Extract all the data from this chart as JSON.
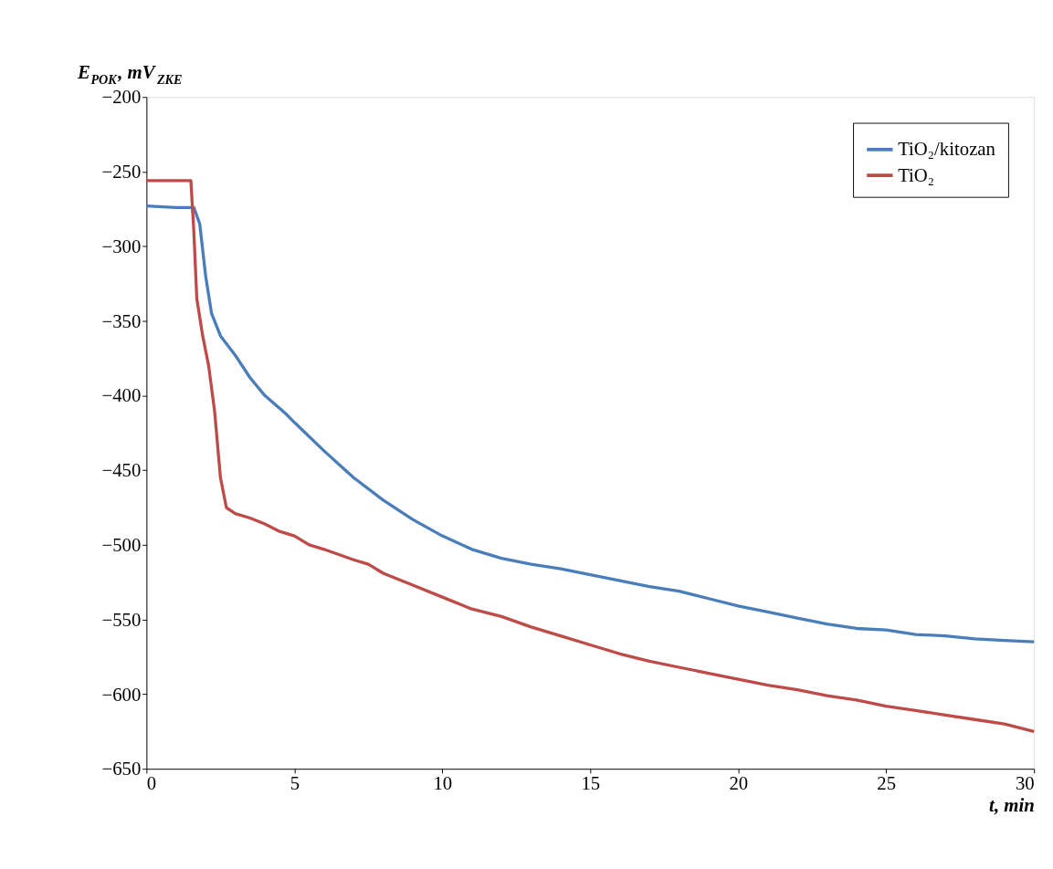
{
  "chart_data": {
    "type": "line",
    "ylabel": "E$_{POK}$, mV$_{ZKE}$",
    "xlabel": "t, min",
    "xlim": [
      0,
      30
    ],
    "xticks": [
      0,
      5,
      10,
      15,
      20,
      25,
      30
    ],
    "ylim": [
      -650,
      -200
    ],
    "yticks": [
      -650,
      -600,
      -550,
      -500,
      -450,
      -400,
      -350,
      -300,
      -250,
      -200
    ],
    "grid": false,
    "legend": "top right",
    "line_style": "solid",
    "marker": "none",
    "series": [
      {
        "name": "TiO₂/kitozan",
        "color": "#4a7ebb",
        "x": [
          0,
          1,
          1.6,
          1.8,
          2,
          2.2,
          2.5,
          3,
          3.5,
          4,
          4.7,
          5,
          6,
          7,
          8,
          9,
          10,
          11,
          12,
          13,
          14,
          15,
          16,
          17,
          18,
          19,
          20,
          21,
          22,
          23,
          24,
          25,
          26,
          27,
          28,
          29,
          30
        ],
        "values": [
          -273,
          -274,
          -274,
          -285,
          -320,
          -345,
          -360,
          -373,
          -388,
          -400,
          -412,
          -418,
          -437,
          -455,
          -470,
          -483,
          -494,
          -503,
          -509,
          -513,
          -516,
          -520,
          -524,
          -528,
          -531,
          -536,
          -541,
          -545,
          -549,
          -553,
          -556,
          -557,
          -560,
          -561,
          -563,
          -564,
          -565
        ]
      },
      {
        "name": "TiO₂",
        "color": "#be4b48",
        "x": [
          0,
          1.5,
          1.6,
          1.7,
          1.9,
          2.1,
          2.3,
          2.5,
          2.7,
          3,
          3.5,
          4,
          4.5,
          5,
          5.5,
          6,
          7,
          7.5,
          8,
          9,
          10,
          11,
          12,
          13,
          14,
          15,
          16,
          17,
          18,
          19,
          20,
          21,
          22,
          23,
          24,
          25,
          26,
          27,
          28,
          29,
          30
        ],
        "values": [
          -256,
          -256,
          -290,
          -335,
          -360,
          -380,
          -410,
          -455,
          -475,
          -479,
          -482,
          -486,
          -491,
          -494,
          -500,
          -503,
          -510,
          -513,
          -519,
          -527,
          -535,
          -543,
          -548,
          -555,
          -561,
          -567,
          -573,
          -578,
          -582,
          -586,
          -590,
          -594,
          -597,
          -601,
          -604,
          -608,
          -611,
          -614,
          -617,
          -620,
          -625
        ]
      }
    ]
  }
}
